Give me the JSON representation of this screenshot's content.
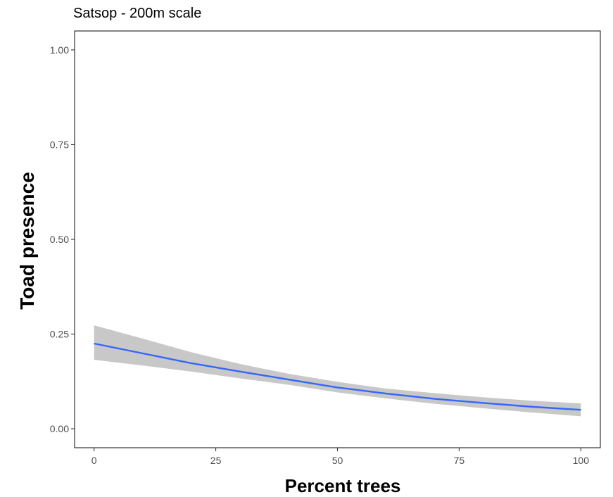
{
  "chart_data": {
    "type": "line",
    "title": "Satsop - 200m scale",
    "xlabel": "Percent trees",
    "ylabel": "Toad presence",
    "xlim": [
      -4,
      104
    ],
    "ylim": [
      -0.05,
      1.05
    ],
    "x_ticks": [
      0,
      25,
      50,
      75,
      100
    ],
    "x_tick_labels": [
      "0",
      "25",
      "50",
      "75",
      "100"
    ],
    "y_ticks": [
      0,
      0.25,
      0.5,
      0.75,
      1.0
    ],
    "y_tick_labels": [
      "0.00",
      "0.25",
      "0.50",
      "0.75",
      "1.00"
    ],
    "grid": false,
    "series": [
      {
        "x": [
          0,
          10,
          20,
          30,
          40,
          50,
          60,
          70,
          80,
          90,
          100
        ],
        "y": [
          0.225,
          0.199,
          0.173,
          0.151,
          0.13,
          0.109,
          0.093,
          0.079,
          0.068,
          0.058,
          0.05
        ],
        "ci_lower": [
          0.182,
          0.167,
          0.151,
          0.133,
          0.116,
          0.096,
          0.08,
          0.066,
          0.054,
          0.043,
          0.033
        ],
        "ci_upper": [
          0.273,
          0.238,
          0.202,
          0.171,
          0.145,
          0.124,
          0.106,
          0.094,
          0.083,
          0.074,
          0.067
        ],
        "color": "#3366ff",
        "ribbon_color": "#c8c8c8"
      }
    ]
  }
}
